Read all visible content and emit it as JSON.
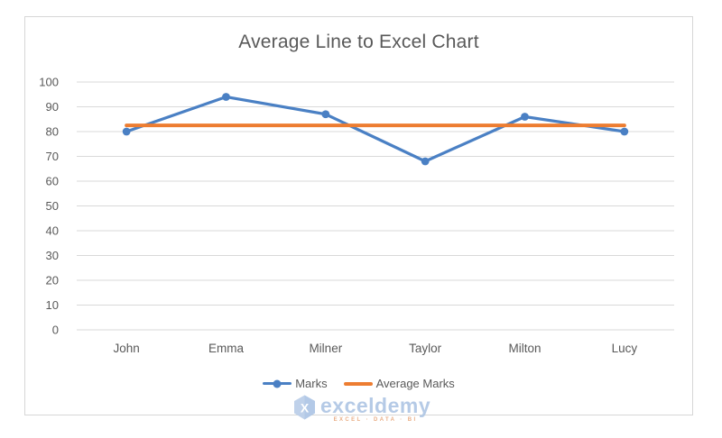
{
  "page": {
    "background": "#ffffff",
    "frame_border_color": "#d6d6d6"
  },
  "chart_data": {
    "type": "line",
    "title": "Average Line to Excel Chart",
    "categories": [
      "John",
      "Emma",
      "Milner",
      "Taylor",
      "Milton",
      "Lucy"
    ],
    "series": [
      {
        "name": "Marks",
        "values": [
          80,
          94,
          87,
          68,
          86,
          80
        ],
        "color": "#4a80c4",
        "marker": "circle"
      },
      {
        "name": "Average Marks",
        "values": [
          82.5,
          82.5,
          82.5,
          82.5,
          82.5,
          82.5
        ],
        "color": "#ed7d31",
        "marker": "none"
      }
    ],
    "average_value": 82.5,
    "xlabel": "",
    "ylabel": "",
    "ylim": [
      0,
      100
    ],
    "ytick_step": 10,
    "grid": true,
    "gridline_color": "#d9d9d9",
    "axis_text_color": "#595959",
    "legend_position": "bottom"
  },
  "watermark": {
    "text": "exceldemy",
    "subtext": "EXCEL · DATA · BI",
    "text_color": "#b2c8e5",
    "subtext_color": "#e8a97e",
    "logo_color": "#bccfe9"
  }
}
